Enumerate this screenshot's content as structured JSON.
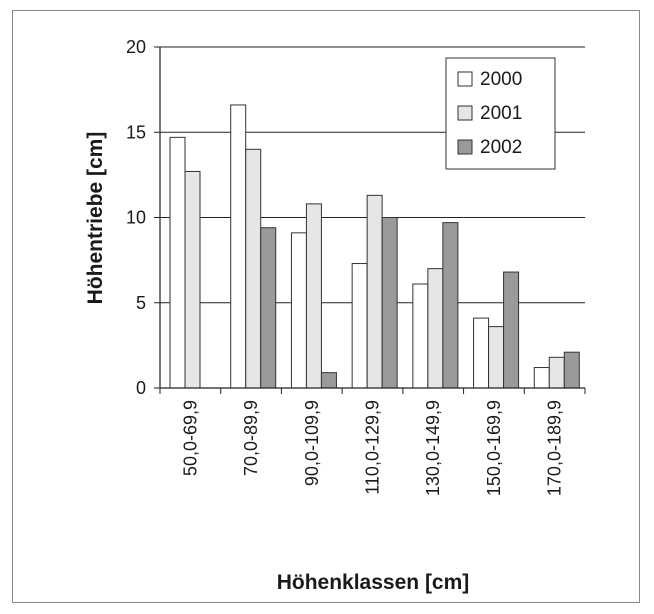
{
  "chart_data": {
    "type": "bar",
    "categories": [
      "50,0-69,9",
      "70,0-89,9",
      "90,0-109,9",
      "110,0-129,9",
      "130,0-149,9",
      "150,0-169,9",
      "170,0-189,9"
    ],
    "series": [
      {
        "name": "2000",
        "values": [
          14.7,
          16.6,
          9.1,
          7.3,
          6.1,
          4.1,
          1.2
        ],
        "color": "#ffffff"
      },
      {
        "name": "2001",
        "values": [
          12.7,
          14.0,
          10.8,
          11.3,
          7.0,
          3.6,
          1.8
        ],
        "color": "#e6e6e6"
      },
      {
        "name": "2002",
        "values": [
          null,
          9.4,
          0.9,
          10.0,
          9.7,
          6.8,
          2.1
        ],
        "color": "#9a9a9a"
      }
    ],
    "xlabel": "Höhenklassen [cm]",
    "ylabel": "Höhentriebe [cm]",
    "ylim": [
      0,
      20
    ],
    "yticks": [
      0,
      5,
      10,
      15,
      20
    ],
    "grid": true,
    "legend_position": "top-right"
  }
}
